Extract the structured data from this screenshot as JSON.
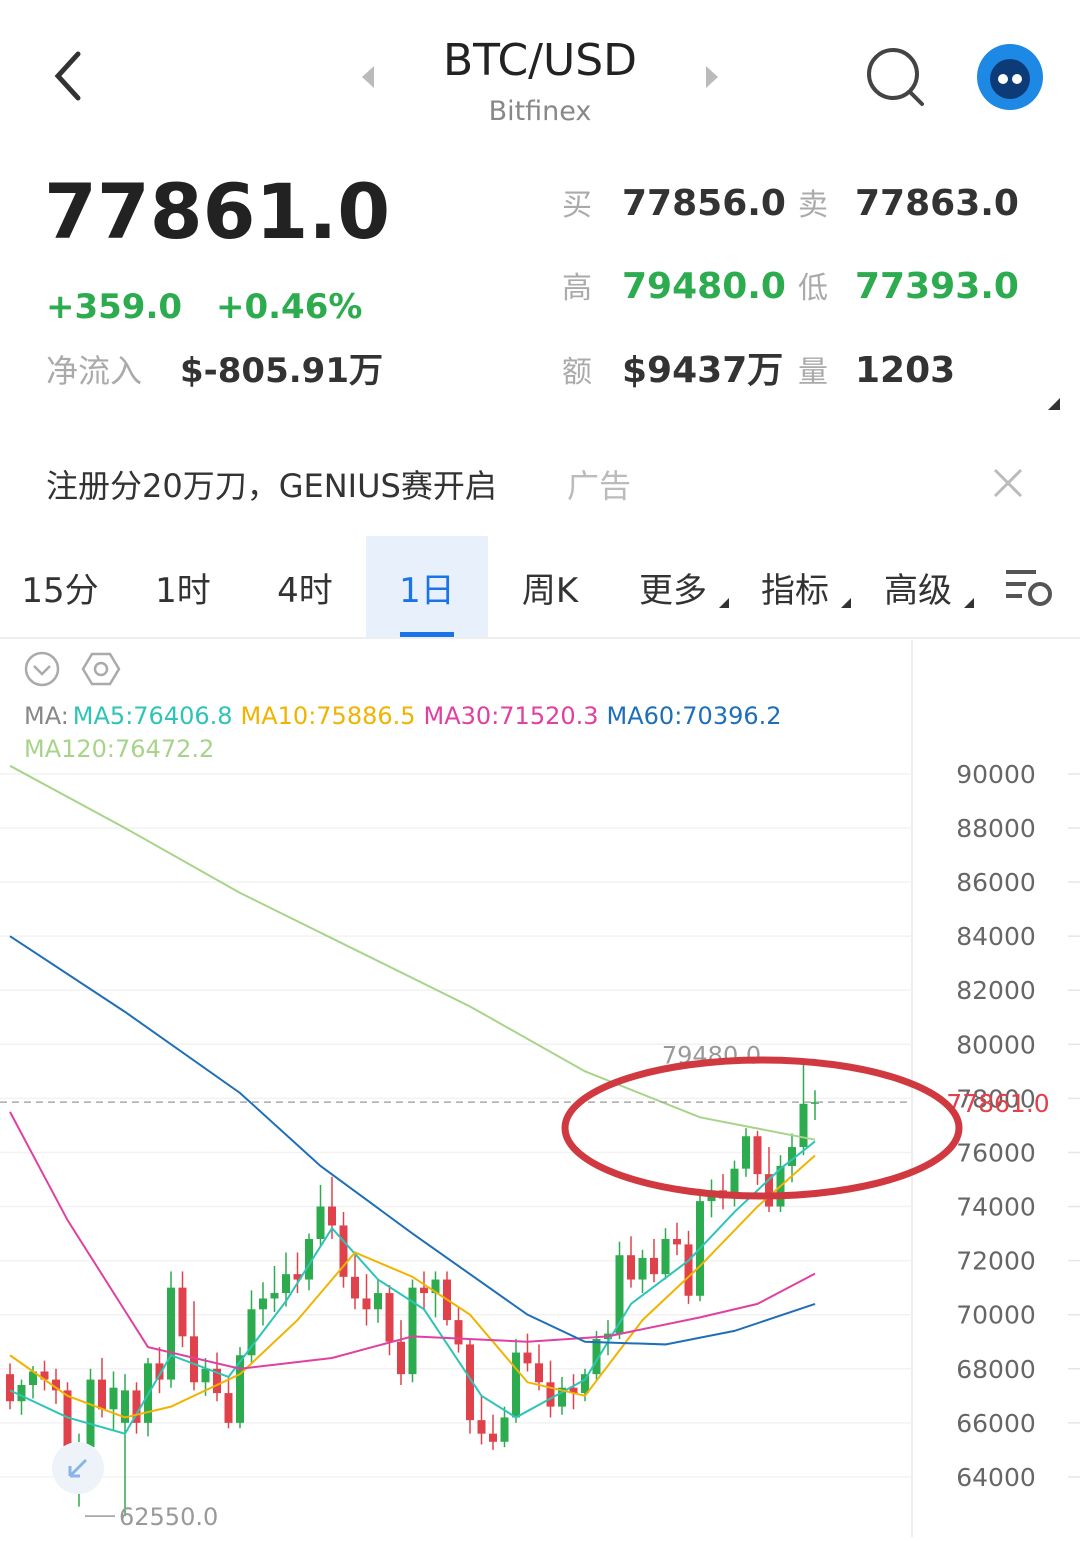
{
  "header": {
    "title": "BTC/USD",
    "exchange": "Bitfinex"
  },
  "quote": {
    "price": "77861.0",
    "change": "+359.0",
    "change_pct": "+0.46%",
    "net_inflow": {
      "label": "净流入",
      "value": "$-805.91万"
    },
    "stats": [
      {
        "label": "买",
        "value": "77856.0"
      },
      {
        "label": "卖",
        "value": "77863.0"
      },
      {
        "label": "高",
        "value": "79480.0"
      },
      {
        "label": "低",
        "value": "77393.0"
      },
      {
        "label": "额",
        "value": "$9437万"
      },
      {
        "label": "量",
        "value": "1203"
      }
    ]
  },
  "ad": {
    "text": "注册分20万刀，GENIUS赛开启",
    "tag": "广告"
  },
  "tabs": [
    "15分",
    "1时",
    "4时",
    "1日",
    "周K",
    "更多",
    "指标",
    "高级"
  ],
  "active_tab": 3,
  "chart_data": {
    "type": "candlestick",
    "legend_prefix": "MA:",
    "up_color": "#2dab4f",
    "down_color": "#e0424b",
    "open": [
      67800,
      66800,
      67400,
      67900,
      67600,
      67200,
      64500,
      65100,
      67600,
      66500,
      66000,
      67200,
      66000,
      68200,
      67600,
      71000,
      69200,
      67500,
      68000,
      67100,
      66000,
      68500,
      70200,
      70600,
      70800,
      71500,
      71300,
      72800,
      74000,
      73300,
      71400,
      70600,
      70200,
      70800,
      69000,
      67800,
      71000,
      70800,
      71300,
      69800,
      68900,
      66100,
      65600,
      65300,
      66200,
      68600,
      68200,
      67500,
      66600,
      67300,
      67100,
      67800,
      69100,
      69300,
      72200,
      71300,
      72100,
      71500,
      72800,
      72600,
      70700,
      74200,
      74600,
      74300,
      75400,
      76600,
      75200,
      74000,
      75500,
      76200,
      77800
    ],
    "high": [
      68200,
      67600,
      68100,
      68300,
      68000,
      67500,
      65600,
      68000,
      68400,
      67900,
      67800,
      67500,
      68400,
      68800,
      71600,
      71600,
      70500,
      68400,
      68600,
      67700,
      68800,
      70900,
      71200,
      71800,
      72300,
      72300,
      73000,
      74800,
      75100,
      73800,
      72200,
      71500,
      71300,
      71100,
      69800,
      71300,
      71600,
      71600,
      71600,
      70300,
      69100,
      67000,
      66300,
      66600,
      69100,
      69300,
      68900,
      68300,
      67700,
      67800,
      68000,
      69400,
      69800,
      72700,
      72900,
      72400,
      72800,
      73200,
      73400,
      73100,
      74400,
      75000,
      75200,
      75700,
      76900,
      76800,
      76200,
      75900,
      76700,
      79480,
      78300
    ],
    "low": [
      66500,
      66300,
      66900,
      67200,
      66700,
      63800,
      62900,
      64300,
      66200,
      65700,
      62550,
      65600,
      65500,
      67100,
      67300,
      68800,
      67200,
      67000,
      66800,
      65800,
      65800,
      68200,
      69600,
      70100,
      70300,
      70800,
      70900,
      72500,
      72800,
      71000,
      70200,
      69600,
      69700,
      68500,
      67400,
      67500,
      70200,
      69900,
      69600,
      68600,
      65600,
      65200,
      65000,
      65100,
      66000,
      67900,
      67200,
      66200,
      66300,
      66500,
      66800,
      67600,
      68500,
      69100,
      71000,
      70800,
      71200,
      71300,
      72200,
      70400,
      70500,
      73600,
      73900,
      74000,
      75100,
      74800,
      73800,
      73800,
      74900,
      75900,
      77200
    ],
    "close": [
      66800,
      67400,
      67900,
      67600,
      67200,
      64500,
      65100,
      67600,
      66500,
      67300,
      67200,
      66000,
      68200,
      67600,
      71000,
      69200,
      67500,
      68000,
      67100,
      66000,
      68500,
      70200,
      70600,
      70800,
      71500,
      71300,
      72800,
      74000,
      73300,
      71400,
      70600,
      70200,
      70800,
      69000,
      67800,
      71000,
      70800,
      71300,
      69800,
      68900,
      66100,
      65600,
      65300,
      66200,
      68600,
      68200,
      67500,
      66600,
      67300,
      67100,
      67800,
      69100,
      69300,
      72200,
      71300,
      72100,
      71500,
      72800,
      72600,
      70700,
      74200,
      74600,
      74300,
      75400,
      76600,
      75200,
      74000,
      75500,
      76200,
      77800,
      77861
    ],
    "series": [
      {
        "name": "MA5",
        "label": "MA5:76406.8",
        "color": "#2ec4b6",
        "x": [
          0,
          5,
          10,
          14,
          19,
          24,
          28,
          32,
          36,
          41,
          44,
          50,
          54,
          59,
          63,
          67,
          70
        ],
        "values": [
          67200,
          66200,
          65600,
          68500,
          67700,
          70500,
          73200,
          71300,
          70200,
          67000,
          66200,
          67600,
          70400,
          72000,
          73800,
          75400,
          76406.8
        ]
      },
      {
        "name": "MA10",
        "label": "MA10:75886.5",
        "color": "#f0b400",
        "x": [
          0,
          5,
          10,
          14,
          20,
          25,
          30,
          35,
          40,
          45,
          50,
          55,
          60,
          65,
          70
        ],
        "values": [
          68500,
          67000,
          66200,
          66600,
          67800,
          69800,
          72300,
          71400,
          70000,
          67500,
          67000,
          69800,
          71800,
          74000,
          75886.5
        ]
      },
      {
        "name": "MA30",
        "label": "MA30:71520.3",
        "color": "#e040a0",
        "x": [
          0,
          5,
          12,
          20,
          28,
          35,
          45,
          52,
          60,
          65,
          70
        ],
        "values": [
          77500,
          73500,
          68800,
          68000,
          68400,
          69200,
          69000,
          69200,
          69900,
          70400,
          71520.3
        ]
      },
      {
        "name": "MA60",
        "label": "MA60:70396.2",
        "color": "#1e6fb8",
        "x": [
          0,
          10,
          20,
          27,
          35,
          45,
          50,
          57,
          63,
          70
        ],
        "values": [
          84000,
          81200,
          78200,
          75500,
          73000,
          70000,
          69000,
          68900,
          69400,
          70396.2
        ]
      },
      {
        "name": "MA120",
        "label": "MA120:76472.2",
        "color": "#a8d48a",
        "x": [
          0,
          10,
          20,
          30,
          40,
          50,
          60,
          70
        ],
        "values": [
          90300,
          88000,
          85600,
          83500,
          81400,
          79000,
          77300,
          76472.2
        ]
      }
    ],
    "ylim": [
      62000,
      90700
    ],
    "yticks": [
      64000,
      66000,
      68000,
      70000,
      72000,
      74000,
      76000,
      78000,
      80000,
      82000,
      84000,
      86000,
      88000,
      90000
    ],
    "grid": true,
    "annotations": {
      "high": {
        "value": 79480,
        "label": "79480.0"
      },
      "low": {
        "value": 62550,
        "label": "62550.0"
      },
      "last": {
        "value": 77861,
        "label": "77861.0"
      }
    }
  }
}
